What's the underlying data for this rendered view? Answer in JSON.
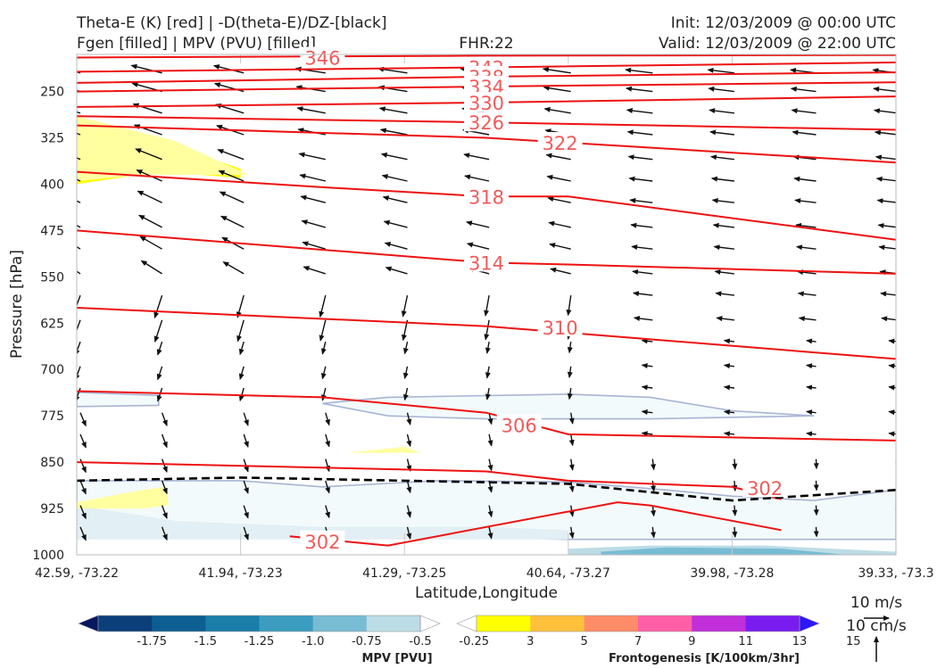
{
  "header": {
    "title_line1": "Theta-E (K) [red] | -D(theta-E)/DZ-[black]",
    "title_line2": "Fgen [filled] | MPV (PVU) [filled]",
    "fhr": "FHR:22",
    "init": "Init: 12/03/2009 @ 00:00 UTC",
    "valid": "Valid: 12/03/2009 @ 22:00 UTC"
  },
  "chart_data": {
    "type": "cross-section",
    "xlabel": "Latitude,Longitude",
    "ylabel": "Pressure [hPa]",
    "x_ticks": [
      "42.59, -73.22",
      "41.94, -73.23",
      "41.29, -73.25",
      "40.64, -73.27",
      "39.98, -73.28",
      "39.33, -73.3"
    ],
    "y_ticks": [
      250,
      325,
      400,
      475,
      550,
      625,
      700,
      775,
      850,
      925,
      1000
    ],
    "ylim": [
      1000,
      190
    ],
    "theta_e_contours": [
      {
        "label": "346",
        "level": 346,
        "points": [
          [
            0,
            195
          ],
          [
            2.5,
            192
          ],
          [
            5,
            191
          ]
        ]
      },
      {
        "label": "342",
        "level": 342,
        "points": [
          [
            0,
            218
          ],
          [
            2.5,
            211
          ],
          [
            5,
            203
          ]
        ]
      },
      {
        "label": "338",
        "level": 338,
        "points": [
          [
            0,
            236
          ],
          [
            2.5,
            226
          ],
          [
            5,
            219
          ]
        ]
      },
      {
        "label": "334",
        "level": 334,
        "points": [
          [
            0,
            250
          ],
          [
            2.5,
            242
          ],
          [
            5,
            235
          ]
        ]
      },
      {
        "label": "330",
        "level": 330,
        "points": [
          [
            0,
            275
          ],
          [
            2.5,
            268
          ],
          [
            5,
            258
          ]
        ]
      },
      {
        "label": "326",
        "level": 326,
        "points": [
          [
            0,
            290
          ],
          [
            2.5,
            300
          ],
          [
            5,
            312
          ]
        ]
      },
      {
        "label": "322",
        "level": 322,
        "points": [
          [
            0,
            305
          ],
          [
            2.5,
            325
          ],
          [
            5,
            365
          ]
        ]
      },
      {
        "label": "318",
        "level": 318,
        "points": [
          [
            0,
            380
          ],
          [
            1.5,
            405
          ],
          [
            2.5,
            420
          ],
          [
            3,
            420
          ],
          [
            5,
            490
          ]
        ]
      },
      {
        "label": "314",
        "level": 314,
        "points": [
          [
            0,
            475
          ],
          [
            2.5,
            527
          ],
          [
            3,
            530
          ],
          [
            5,
            545
          ]
        ]
      },
      {
        "label": "310",
        "level": 310,
        "points": [
          [
            0,
            600
          ],
          [
            2.5,
            630
          ],
          [
            5,
            683
          ]
        ]
      },
      {
        "label": "306",
        "level": 306,
        "points": [
          [
            0,
            735
          ],
          [
            1.5,
            745
          ],
          [
            2.5,
            770
          ],
          [
            3,
            805
          ],
          [
            5,
            815
          ]
        ]
      },
      {
        "label": "302",
        "level": 302,
        "points": [
          [
            0,
            850
          ],
          [
            2.5,
            865
          ],
          [
            3,
            880
          ],
          [
            4,
            890
          ],
          [
            4.3,
            910
          ]
        ]
      },
      {
        "label": "302",
        "level": 302,
        "points": [
          [
            1.3,
            970
          ],
          [
            1.9,
            985
          ],
          [
            3.3,
            915
          ],
          [
            3.5,
            920
          ],
          [
            4.2,
            955
          ],
          [
            4.3,
            960
          ]
        ]
      }
    ],
    "stability_zero_line": {
      "label": "-D(theta-E)/DZ",
      "points": [
        [
          0,
          880
        ],
        [
          1,
          875
        ],
        [
          2,
          880
        ],
        [
          3,
          885
        ],
        [
          4,
          912
        ],
        [
          5,
          895
        ]
      ]
    },
    "mpv_colorbar": {
      "label": "MPV [PVU]",
      "ticks": [
        "-1.75",
        "-1.5",
        "-1.25",
        "-1.0",
        "-0.75",
        "-0.5",
        "-0.25"
      ],
      "colors": [
        "#08175e",
        "#0b3f7a",
        "#0d5e92",
        "#1b7ea8",
        "#3c9cbf",
        "#78bcd4",
        "#bcdce6",
        "#ffffff"
      ]
    },
    "fgen_colorbar": {
      "label": "Frontogenesis [K/100km/3hr]",
      "ticks": [
        "3",
        "5",
        "7",
        "9",
        "11",
        "13",
        "15"
      ],
      "colors": [
        "#ffffff",
        "#ffff00",
        "#ffc03c",
        "#ff8c69",
        "#ff5fa6",
        "#c02fd9",
        "#7a1cf0",
        "#2b17fa"
      ]
    },
    "wind_key": {
      "speed": "10 m/s",
      "vertical": "10 cm/s"
    }
  }
}
